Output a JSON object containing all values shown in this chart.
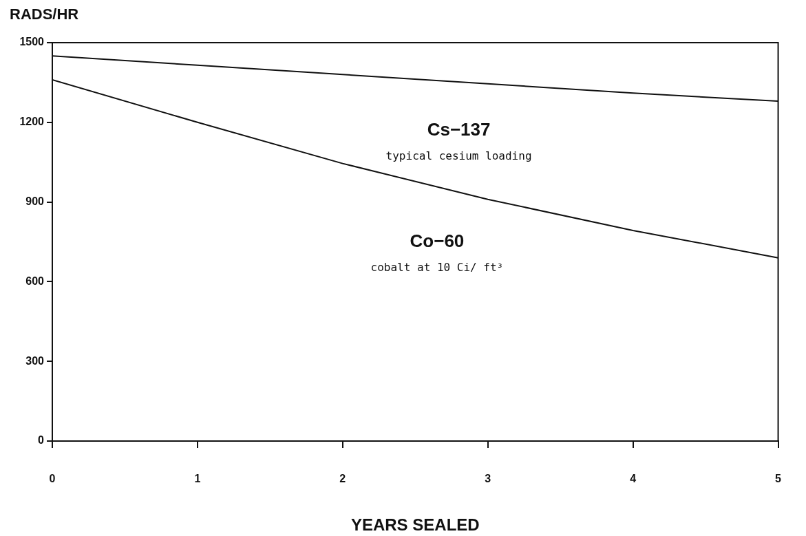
{
  "chart_data": {
    "type": "line",
    "ylabel": "RADS/HR",
    "xlabel": "YEARS SEALED",
    "x": [
      0,
      1,
      2,
      3,
      4,
      5
    ],
    "series": [
      {
        "name": "Cs−137",
        "color": "#111111",
        "values": [
          1450,
          1415,
          1380,
          1345,
          1310,
          1280
        ]
      },
      {
        "name": "Co−60",
        "color": "#111111",
        "values": [
          1360,
          1200,
          1045,
          910,
          793,
          690
        ]
      }
    ],
    "annotations": [
      "typical cesium loading",
      "cobalt at 10 Ci/ ft³"
    ],
    "xlim": [
      0,
      5
    ],
    "xticks": [
      0,
      1,
      2,
      3,
      4,
      5
    ],
    "ylim": [
      0,
      1500
    ],
    "yticks": [
      0,
      300,
      600,
      900,
      1200,
      1500
    ]
  }
}
